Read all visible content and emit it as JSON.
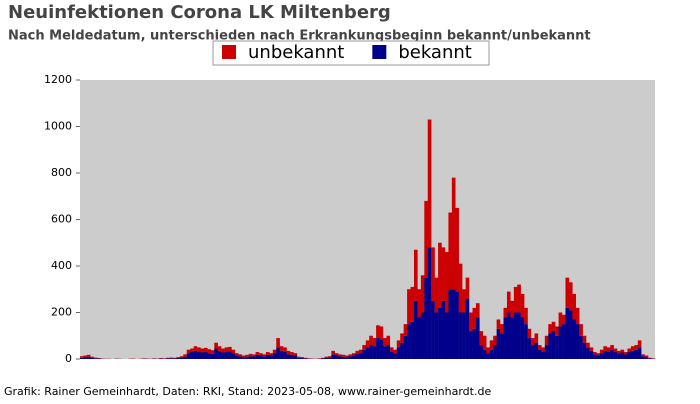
{
  "chart_data": {
    "type": "stacked_bar",
    "title": "Neuinfektionen Corona LK Miltenberg",
    "subtitle": "Nach Meldedatum, unterschieden nach Erkrankungsbeginn bekannt/unbekannt",
    "footer": "Grafik: Rainer Gemeinhardt, Daten: RKI, Stand: 2023-05-08, www.rainer-gemeinhardt.de",
    "legend": "top",
    "categories": [
      null,
      null,
      null,
      null,
      null,
      null,
      null,
      null,
      null,
      null,
      null,
      null,
      null,
      null,
      null,
      null,
      null,
      null,
      null,
      null,
      null,
      null,
      null,
      null,
      null,
      null,
      null,
      null,
      null,
      null,
      null,
      null,
      null,
      null,
      null,
      null,
      null,
      null,
      null,
      null,
      null,
      null,
      null,
      null,
      null,
      null,
      null,
      null,
      null,
      null,
      null,
      null,
      null,
      null,
      null,
      null,
      null,
      null,
      null,
      null,
      null,
      null,
      null,
      null,
      null,
      null,
      null,
      null,
      null,
      null,
      null,
      null,
      null,
      null,
      null,
      null,
      null,
      null,
      null,
      null,
      null,
      null,
      null,
      null,
      null,
      null,
      null,
      null,
      null,
      null,
      null,
      null,
      null,
      null,
      null,
      null,
      null,
      null,
      null,
      null,
      null,
      null,
      null,
      null,
      null,
      null,
      null,
      null,
      null,
      null,
      null,
      null,
      null,
      null,
      null,
      null,
      null,
      null,
      null,
      null,
      null,
      null,
      null,
      null,
      null,
      null,
      null,
      null,
      null,
      null,
      null,
      null,
      null,
      null,
      null,
      null,
      null,
      null,
      null,
      null,
      null,
      null,
      null,
      null,
      null,
      null,
      null,
      null,
      null,
      null,
      null,
      null,
      null,
      null,
      null,
      null,
      null,
      null,
      null,
      null,
      null,
      null,
      null,
      null,
      null,
      null,
      null
    ],
    "series": [
      {
        "name": "bekannt",
        "color": "#00008b",
        "values": [
          5,
          8,
          10,
          5,
          3,
          2,
          1,
          0,
          0,
          0,
          1,
          0,
          0,
          0,
          0,
          1,
          0,
          0,
          1,
          1,
          0,
          1,
          1,
          2,
          1,
          2,
          3,
          2,
          4,
          6,
          10,
          25,
          30,
          35,
          30,
          28,
          30,
          25,
          22,
          45,
          35,
          28,
          30,
          32,
          25,
          15,
          12,
          8,
          10,
          12,
          12,
          18,
          15,
          12,
          18,
          15,
          25,
          50,
          35,
          30,
          20,
          18,
          15,
          5,
          4,
          2,
          1,
          1,
          0,
          1,
          2,
          5,
          6,
          20,
          15,
          12,
          10,
          8,
          12,
          15,
          22,
          25,
          40,
          50,
          60,
          55,
          90,
          85,
          55,
          60,
          30,
          25,
          50,
          70,
          100,
          150,
          160,
          250,
          180,
          200,
          350,
          480,
          250,
          200,
          220,
          250,
          200,
          300,
          300,
          290,
          200,
          200,
          260,
          120,
          130,
          180,
          60,
          40,
          25,
          40,
          60,
          130,
          110,
          180,
          200,
          180,
          200,
          200,
          180,
          150,
          90,
          60,
          70,
          40,
          30,
          60,
          110,
          120,
          100,
          140,
          150,
          220,
          210,
          170,
          150,
          100,
          70,
          50,
          35,
          20,
          15,
          25,
          35,
          30,
          40,
          30,
          25,
          28,
          20,
          30,
          35,
          40,
          50,
          12,
          8,
          2,
          1
        ]
      },
      {
        "name": "unbekannt",
        "color": "#cc0000",
        "values": [
          7,
          7,
          8,
          5,
          3,
          2,
          1,
          1,
          1,
          0,
          1,
          1,
          0,
          0,
          1,
          1,
          0,
          1,
          2,
          1,
          1,
          2,
          1,
          2,
          2,
          3,
          3,
          3,
          4,
          6,
          10,
          15,
          15,
          20,
          20,
          17,
          18,
          17,
          16,
          25,
          20,
          17,
          20,
          20,
          15,
          10,
          8,
          7,
          8,
          10,
          8,
          12,
          10,
          8,
          12,
          10,
          15,
          40,
          20,
          20,
          15,
          12,
          10,
          5,
          4,
          3,
          2,
          1,
          1,
          2,
          3,
          5,
          6,
          15,
          10,
          8,
          8,
          7,
          8,
          10,
          13,
          15,
          20,
          30,
          40,
          35,
          55,
          55,
          35,
          40,
          20,
          15,
          30,
          40,
          50,
          150,
          150,
          220,
          120,
          160,
          330,
          550,
          230,
          150,
          280,
          230,
          260,
          330,
          480,
          360,
          210,
          100,
          90,
          80,
          90,
          60,
          60,
          60,
          25,
          40,
          40,
          40,
          40,
          40,
          90,
          70,
          110,
          120,
          100,
          70,
          40,
          30,
          40,
          20,
          20,
          40,
          40,
          40,
          40,
          60,
          40,
          130,
          120,
          110,
          70,
          50,
          30,
          20,
          15,
          10,
          10,
          15,
          20,
          20,
          20,
          15,
          10,
          12,
          10,
          15,
          20,
          20,
          30,
          8,
          7,
          3,
          2
        ]
      }
    ],
    "ylim": [
      0,
      1200
    ],
    "yticks": [
      0,
      200,
      400,
      600,
      800,
      1000,
      1200
    ],
    "background": "#cccccc"
  }
}
